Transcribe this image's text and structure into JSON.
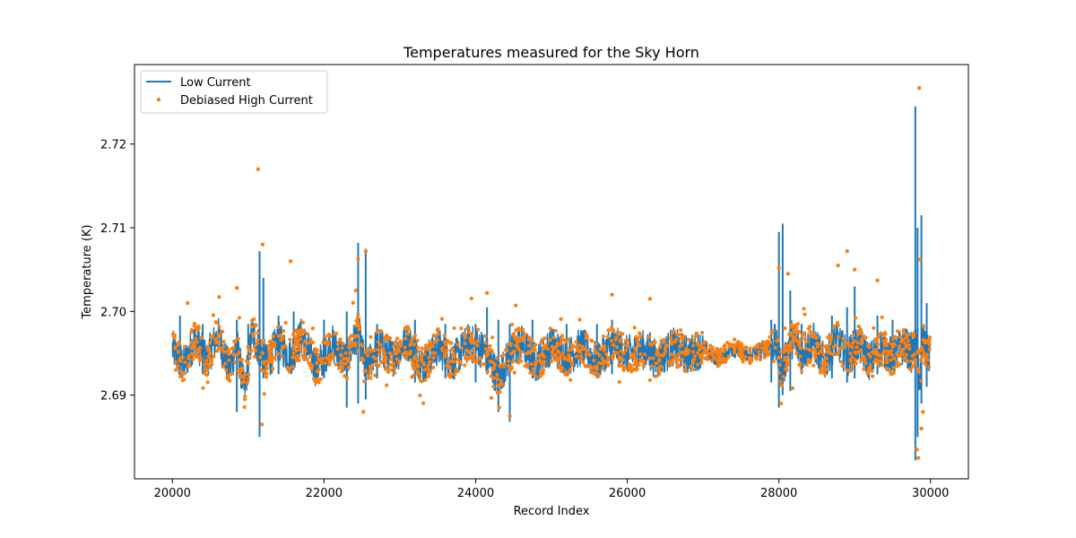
{
  "chart_data": {
    "type": "line+scatter",
    "title": "Temperatures measured for the Sky Horn",
    "xlabel": "Record Index",
    "ylabel": "Temperature (K)",
    "xlim": [
      19500,
      30500
    ],
    "ylim": [
      2.68,
      2.7295
    ],
    "xticks": [
      20000,
      22000,
      24000,
      26000,
      28000,
      30000
    ],
    "xtick_labels": [
      "20000",
      "22000",
      "24000",
      "26000",
      "28000",
      "30000"
    ],
    "yticks": [
      2.69,
      2.7,
      2.71,
      2.72
    ],
    "ytick_labels": [
      "2.69",
      "2.70",
      "2.71",
      "2.72"
    ],
    "legend_position": "top-left",
    "series": [
      {
        "name": "Low Current",
        "kind": "line",
        "color": "#1f77b4",
        "x": [
          20000,
          20150,
          20300,
          20450,
          20600,
          20750,
          20850,
          20950,
          21050,
          21150,
          21250,
          21400,
          21550,
          21700,
          21900,
          22100,
          22300,
          22450,
          22550,
          22700,
          22900,
          23100,
          23300,
          23500,
          23700,
          23900,
          24100,
          24300,
          24450,
          24600,
          24800,
          25000,
          25200,
          25400,
          25600,
          25800,
          26000,
          26200,
          26400,
          26600,
          26800,
          27000,
          27200,
          27400,
          27600,
          27800,
          27950,
          28050,
          28150,
          28300,
          28450,
          28600,
          28750,
          28900,
          29050,
          29200,
          29350,
          29500,
          29650,
          29750,
          29820,
          29860,
          29900,
          29950,
          30000
        ],
        "y": [
          2.6955,
          2.6935,
          2.6968,
          2.6942,
          2.6972,
          2.693,
          2.696,
          2.6905,
          2.6975,
          2.6955,
          2.6938,
          2.6965,
          2.6945,
          2.697,
          2.6932,
          2.6962,
          2.694,
          2.6978,
          2.6928,
          2.696,
          2.6945,
          2.6965,
          2.6935,
          2.6958,
          2.694,
          2.6962,
          2.6955,
          2.692,
          2.6948,
          2.6962,
          2.6938,
          2.696,
          2.6945,
          2.6958,
          2.694,
          2.6962,
          2.6948,
          2.6955,
          2.6942,
          2.6958,
          2.6948,
          2.6956,
          2.6944,
          2.6957,
          2.6946,
          2.6955,
          2.6962,
          2.6925,
          2.697,
          2.695,
          2.6965,
          2.6938,
          2.6968,
          2.6945,
          2.6962,
          2.694,
          2.6958,
          2.6945,
          2.696,
          2.695,
          2.696,
          2.6915,
          2.6968,
          2.6948,
          2.695
        ],
        "spikes": [
          [
            20100,
            2.6995,
            2.692
          ],
          [
            20400,
            2.6985,
            2.6925
          ],
          [
            20850,
            2.699,
            2.688
          ],
          [
            21000,
            2.6985,
            2.6915
          ],
          [
            21150,
            2.7072,
            2.685
          ],
          [
            21200,
            2.704,
            2.692
          ],
          [
            21400,
            2.6995,
            2.6925
          ],
          [
            21600,
            2.7,
            2.693
          ],
          [
            22000,
            2.699,
            2.692
          ],
          [
            22300,
            2.7,
            2.6885
          ],
          [
            22450,
            2.7082,
            2.689
          ],
          [
            22550,
            2.7075,
            2.6895
          ],
          [
            22700,
            2.6985,
            2.692
          ],
          [
            23200,
            2.699,
            2.6915
          ],
          [
            23600,
            2.6985,
            2.692
          ],
          [
            24000,
            2.6985,
            2.6915
          ],
          [
            24150,
            2.7005,
            2.6925
          ],
          [
            24300,
            2.699,
            2.688
          ],
          [
            24450,
            2.6985,
            2.6868
          ],
          [
            24750,
            2.699,
            2.692
          ],
          [
            25200,
            2.6985,
            2.6925
          ],
          [
            25600,
            2.6985,
            2.692
          ],
          [
            25800,
            2.699,
            2.6925
          ],
          [
            26300,
            2.6975,
            2.6935
          ],
          [
            27900,
            2.699,
            2.6915
          ],
          [
            28000,
            2.7095,
            2.6885
          ],
          [
            28050,
            2.7105,
            2.69
          ],
          [
            28150,
            2.7025,
            2.6905
          ],
          [
            28300,
            2.6985,
            2.6925
          ],
          [
            28700,
            2.6995,
            2.692
          ],
          [
            28900,
            2.7005,
            2.6915
          ],
          [
            29000,
            2.703,
            2.692
          ],
          [
            29300,
            2.6995,
            2.6925
          ],
          [
            29500,
            2.699,
            2.693
          ],
          [
            29800,
            2.7245,
            2.6822
          ],
          [
            29830,
            2.71,
            2.685
          ],
          [
            29880,
            2.7115,
            2.689
          ],
          [
            29950,
            2.701,
            2.691
          ]
        ]
      },
      {
        "name": "Debiased High Current",
        "kind": "scatter",
        "color": "#ff7f0e",
        "outliers": [
          [
            29850,
            2.7267
          ],
          [
            21130,
            2.717
          ],
          [
            21190,
            2.708
          ],
          [
            22550,
            2.7072
          ],
          [
            28900,
            2.7072
          ],
          [
            21560,
            2.706
          ],
          [
            22450,
            2.7063
          ],
          [
            28780,
            2.7055
          ],
          [
            28000,
            2.7052
          ],
          [
            29860,
            2.7062
          ],
          [
            28120,
            2.7045
          ],
          [
            29000,
            2.705
          ],
          [
            29300,
            2.7037
          ],
          [
            20850,
            2.7028
          ],
          [
            22420,
            2.7025
          ],
          [
            25800,
            2.702
          ],
          [
            26300,
            2.7015
          ],
          [
            24150,
            2.7022
          ],
          [
            28250,
            2.6985
          ],
          [
            20200,
            2.701
          ],
          [
            22520,
            2.688
          ],
          [
            21180,
            2.6865
          ],
          [
            24310,
            2.6885
          ],
          [
            24450,
            2.6875
          ],
          [
            28030,
            2.689
          ],
          [
            29840,
            2.6825
          ],
          [
            29820,
            2.6835
          ],
          [
            29880,
            2.686
          ],
          [
            29900,
            2.688
          ]
        ]
      }
    ]
  }
}
